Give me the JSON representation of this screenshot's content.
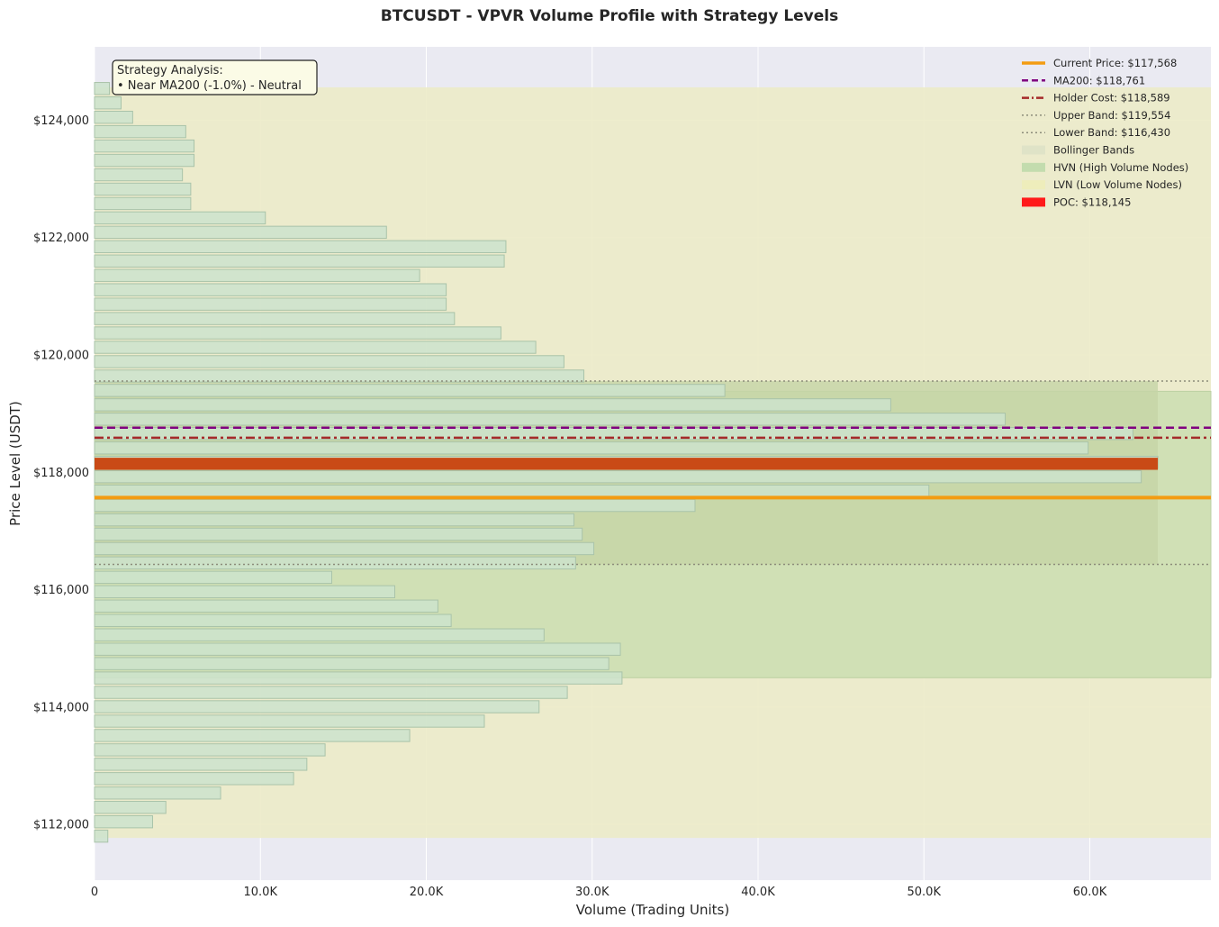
{
  "chart_data": {
    "type": "bar",
    "orientation": "horizontal",
    "title": "BTCUSDT - VPVR Volume Profile with Strategy Levels",
    "xlabel": "Volume (Trading Units)",
    "ylabel": "Price Level (USDT)",
    "xlim": [
      0,
      67300
    ],
    "ylim": [
      111050,
      125250
    ],
    "xticks": [
      0,
      10000,
      20000,
      30000,
      40000,
      50000,
      60000
    ],
    "xtick_labels": [
      "0",
      "10.0K",
      "20.0K",
      "30.0K",
      "40.0K",
      "50.0K",
      "60.0K"
    ],
    "yticks": [
      112000,
      114000,
      116000,
      118000,
      120000,
      122000,
      124000
    ],
    "ytick_labels": [
      "$112,000",
      "$114,000",
      "$116,000",
      "$118,000",
      "$120,000",
      "$122,000",
      "$124,000"
    ],
    "grid": true,
    "legend_position": "top-right",
    "bin_height": 245,
    "bins": [
      {
        "price": 111800,
        "volume": 800
      },
      {
        "price": 112045,
        "volume": 3500
      },
      {
        "price": 112290,
        "volume": 4300
      },
      {
        "price": 112535,
        "volume": 7600
      },
      {
        "price": 112780,
        "volume": 12000
      },
      {
        "price": 113025,
        "volume": 12800
      },
      {
        "price": 113270,
        "volume": 13900
      },
      {
        "price": 113515,
        "volume": 19000
      },
      {
        "price": 113760,
        "volume": 23500
      },
      {
        "price": 114005,
        "volume": 26800
      },
      {
        "price": 114250,
        "volume": 28500
      },
      {
        "price": 114495,
        "volume": 31800
      },
      {
        "price": 114740,
        "volume": 31000
      },
      {
        "price": 114985,
        "volume": 31700
      },
      {
        "price": 115230,
        "volume": 27100
      },
      {
        "price": 115475,
        "volume": 21500
      },
      {
        "price": 115720,
        "volume": 20700
      },
      {
        "price": 115965,
        "volume": 18100
      },
      {
        "price": 116210,
        "volume": 14300
      },
      {
        "price": 116455,
        "volume": 29000
      },
      {
        "price": 116700,
        "volume": 30100
      },
      {
        "price": 116945,
        "volume": 29400
      },
      {
        "price": 117190,
        "volume": 28900
      },
      {
        "price": 117435,
        "volume": 36200
      },
      {
        "price": 117680,
        "volume": 50300
      },
      {
        "price": 117925,
        "volume": 63100
      },
      {
        "price": 118170,
        "volume": 64100
      },
      {
        "price": 118415,
        "volume": 59900
      },
      {
        "price": 118660,
        "volume": 62600
      },
      {
        "price": 118905,
        "volume": 54900
      },
      {
        "price": 119150,
        "volume": 48000
      },
      {
        "price": 119395,
        "volume": 38000
      },
      {
        "price": 119640,
        "volume": 29500
      },
      {
        "price": 119885,
        "volume": 28300
      },
      {
        "price": 120130,
        "volume": 26600
      },
      {
        "price": 120375,
        "volume": 24500
      },
      {
        "price": 120620,
        "volume": 21700
      },
      {
        "price": 120865,
        "volume": 21200
      },
      {
        "price": 121110,
        "volume": 21200
      },
      {
        "price": 121355,
        "volume": 19600
      },
      {
        "price": 121600,
        "volume": 24700
      },
      {
        "price": 121845,
        "volume": 24800
      },
      {
        "price": 122090,
        "volume": 17600
      },
      {
        "price": 122335,
        "volume": 10300
      },
      {
        "price": 122580,
        "volume": 5800
      },
      {
        "price": 122825,
        "volume": 5800
      },
      {
        "price": 123070,
        "volume": 5300
      },
      {
        "price": 123315,
        "volume": 6000
      },
      {
        "price": 123560,
        "volume": 6000
      },
      {
        "price": 123805,
        "volume": 5500
      },
      {
        "price": 124050,
        "volume": 2300
      },
      {
        "price": 124295,
        "volume": 1600
      },
      {
        "price": 124540,
        "volume": 900
      }
    ],
    "poc": {
      "price": 118145,
      "volume": 64100
    },
    "levels": {
      "current_price": 117568,
      "ma200": 118761,
      "holder_cost": 118589,
      "upper_band": 119554,
      "lower_band": 116430
    },
    "zones": {
      "lvn": [
        111770,
        124560
      ],
      "hvn": [
        114500,
        119380
      ],
      "bollinger": [
        116430,
        119554
      ],
      "bollinger_max_volume": 64100
    },
    "legend": [
      "Current Price: $117,568",
      "MA200: $118,761",
      "Holder Cost: $118,589",
      "Upper Band: $119,554",
      "Lower Band: $116,430",
      "Bollinger Bands",
      "HVN (High Volume Nodes)",
      "LVN (Low Volume Nodes)",
      "POC: $118,145"
    ],
    "annotation": {
      "title": "Strategy Analysis:",
      "line": "• Near MA200 (-1.0%) - Neutral"
    },
    "colors": {
      "plot_bg": "#eaeaf2",
      "bar_fill": "#cce3cc",
      "bar_edge": "#a9c3a9",
      "poc": "#c94a16",
      "current_price": "#f39c12",
      "ma200": "#800080",
      "holder_cost": "#a52a2a",
      "bands": "#8c8c7a",
      "lvn_fill": "#ecebc8",
      "hvn_fill": "#cfe0b4",
      "bollinger_fill": "#c5d5a6",
      "annotation_bg": "#fbfbe6"
    }
  }
}
